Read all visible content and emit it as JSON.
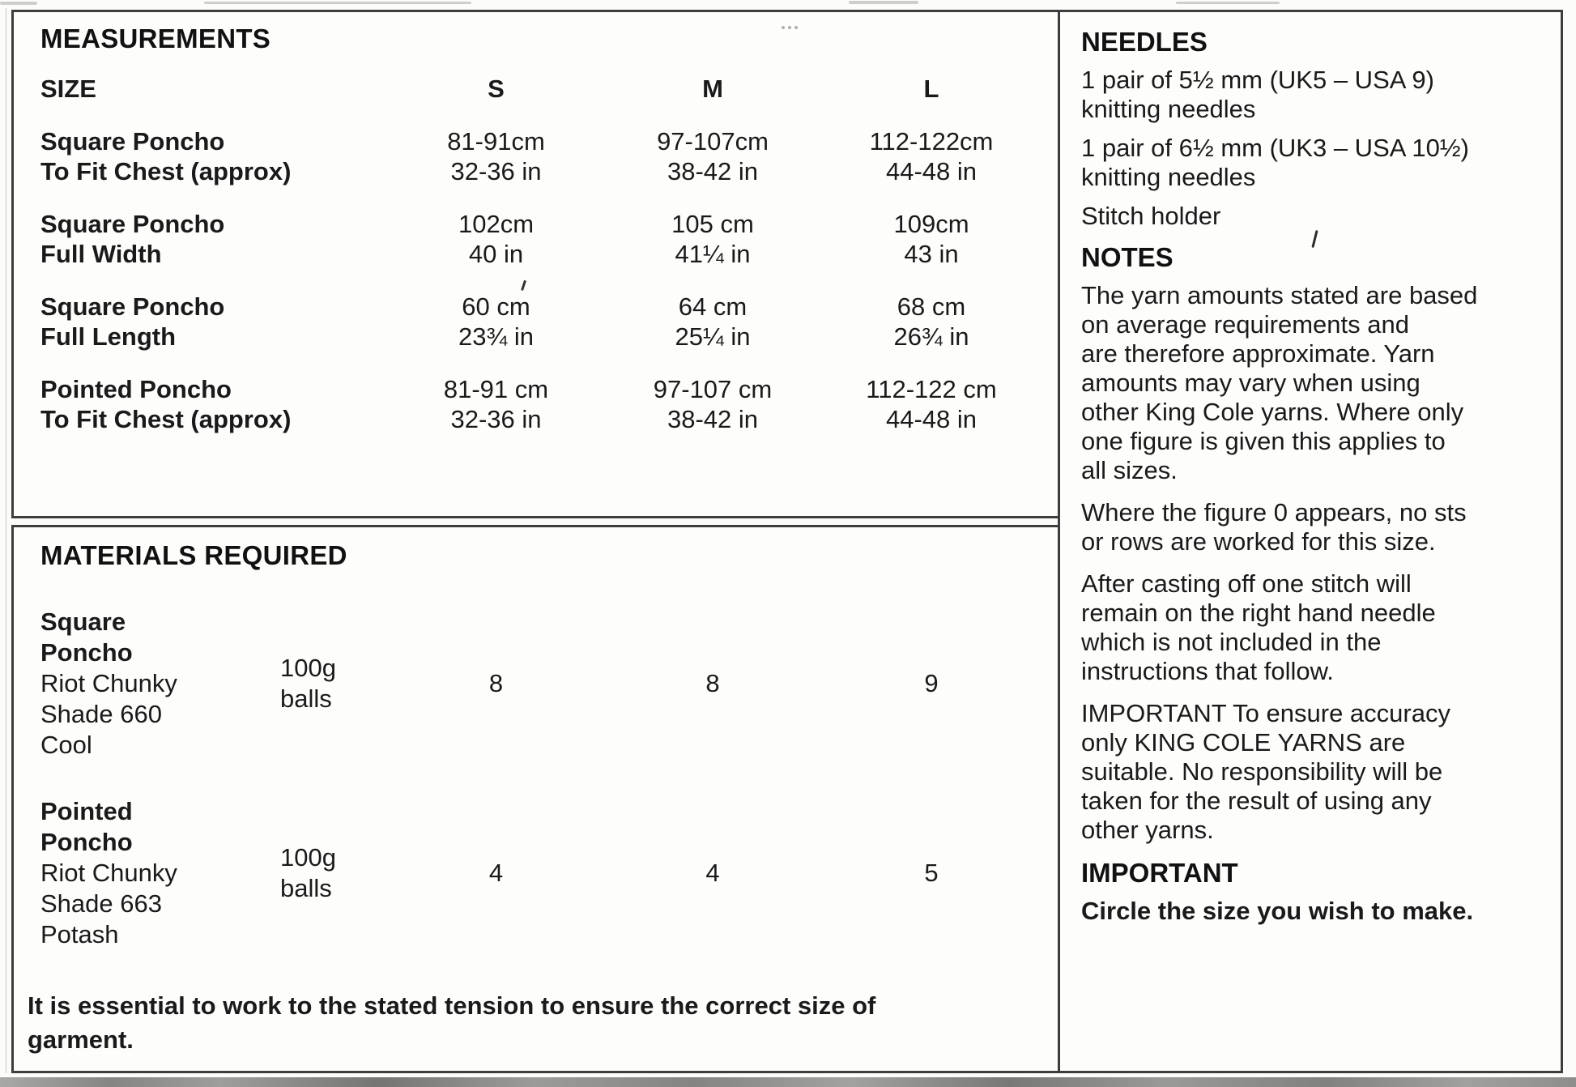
{
  "page": {
    "measurements": {
      "title": "MEASUREMENTS",
      "size_header": "SIZE",
      "columns": [
        "S",
        "M",
        "L"
      ],
      "rows": [
        {
          "label": [
            "Square Poncho",
            "To Fit Chest (approx)"
          ],
          "s": [
            "81-91cm",
            "32-36 in"
          ],
          "m": [
            "97-107cm",
            "38-42 in"
          ],
          "l": [
            "112-122cm",
            "44-48 in"
          ]
        },
        {
          "label": [
            "Square Poncho",
            "Full Width"
          ],
          "s": [
            "102cm",
            "40 in"
          ],
          "m": [
            "105 cm",
            "41¼ in"
          ],
          "l": [
            "109cm",
            "43 in"
          ]
        },
        {
          "label": [
            "Square Poncho",
            "Full Length"
          ],
          "s": [
            "60 cm",
            "23¾ in"
          ],
          "m": [
            "64 cm",
            "25¼ in"
          ],
          "l": [
            "68 cm",
            "26¾ in"
          ]
        },
        {
          "label": [
            "Pointed Poncho",
            "To Fit Chest (approx)"
          ],
          "s": [
            "81-91 cm",
            "32-36 in"
          ],
          "m": [
            "97-107 cm",
            "38-42 in"
          ],
          "l": [
            "112-122 cm",
            "44-48 in"
          ]
        }
      ]
    },
    "materials": {
      "title": "MATERIALS REQUIRED",
      "rows": [
        {
          "name_bold": [
            "Square",
            "Poncho"
          ],
          "name_plain": [
            "Riot Chunky",
            "Shade  660",
            "Cool"
          ],
          "unit": [
            "100g",
            "balls"
          ],
          "s": "8",
          "m": "8",
          "l": "9"
        },
        {
          "name_bold": [
            "Pointed",
            "Poncho"
          ],
          "name_plain": [
            "Riot Chunky",
            "Shade 663",
            "Potash"
          ],
          "unit": [
            "100g",
            "balls"
          ],
          "s": "4",
          "m": "4",
          "l": "5"
        }
      ],
      "tension_note": [
        "It is essential to work to the stated tension to ensure the correct size of",
        "garment."
      ]
    },
    "needles": {
      "title": "NEEDLES",
      "items": [
        [
          "1 pair of 5½ mm (UK5 – USA 9)",
          "knitting needles"
        ],
        [
          "1 pair of 6½ mm (UK3 – USA 10½)",
          "knitting needles"
        ],
        [
          "Stitch holder"
        ]
      ]
    },
    "notes": {
      "title": "NOTES",
      "paragraphs": [
        [
          "The yarn amounts stated are based",
          "on average requirements and",
          "are therefore approximate. Yarn",
          "amounts may vary when using",
          "other King Cole yarns. Where only",
          "one figure is given this applies to",
          "all sizes."
        ],
        [
          "Where the figure 0 appears, no sts",
          "or rows are worked for this size."
        ],
        [
          "After casting off one stitch will",
          "remain on the right hand needle",
          "which is not included in the",
          "instructions that follow."
        ],
        [
          "IMPORTANT  To ensure accuracy",
          "only KING COLE YARNS are",
          "suitable. No responsibility will be",
          "taken for the result of using any",
          "other yarns."
        ]
      ]
    },
    "important": {
      "title": "IMPORTANT",
      "text": "Circle the size you wish to make."
    }
  }
}
